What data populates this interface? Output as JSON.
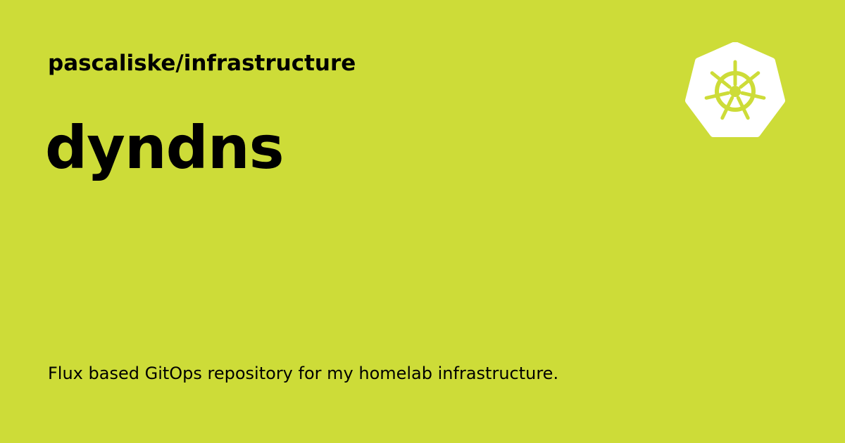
{
  "card": {
    "repository": "pascaliske/infrastructure",
    "title": "dyndns",
    "description": "Flux based GitOps repository for my homelab infrastructure.",
    "logo_icon": "kubernetes-helm-icon",
    "background_color": "#cddc38",
    "logo_color": "#ffffff"
  }
}
